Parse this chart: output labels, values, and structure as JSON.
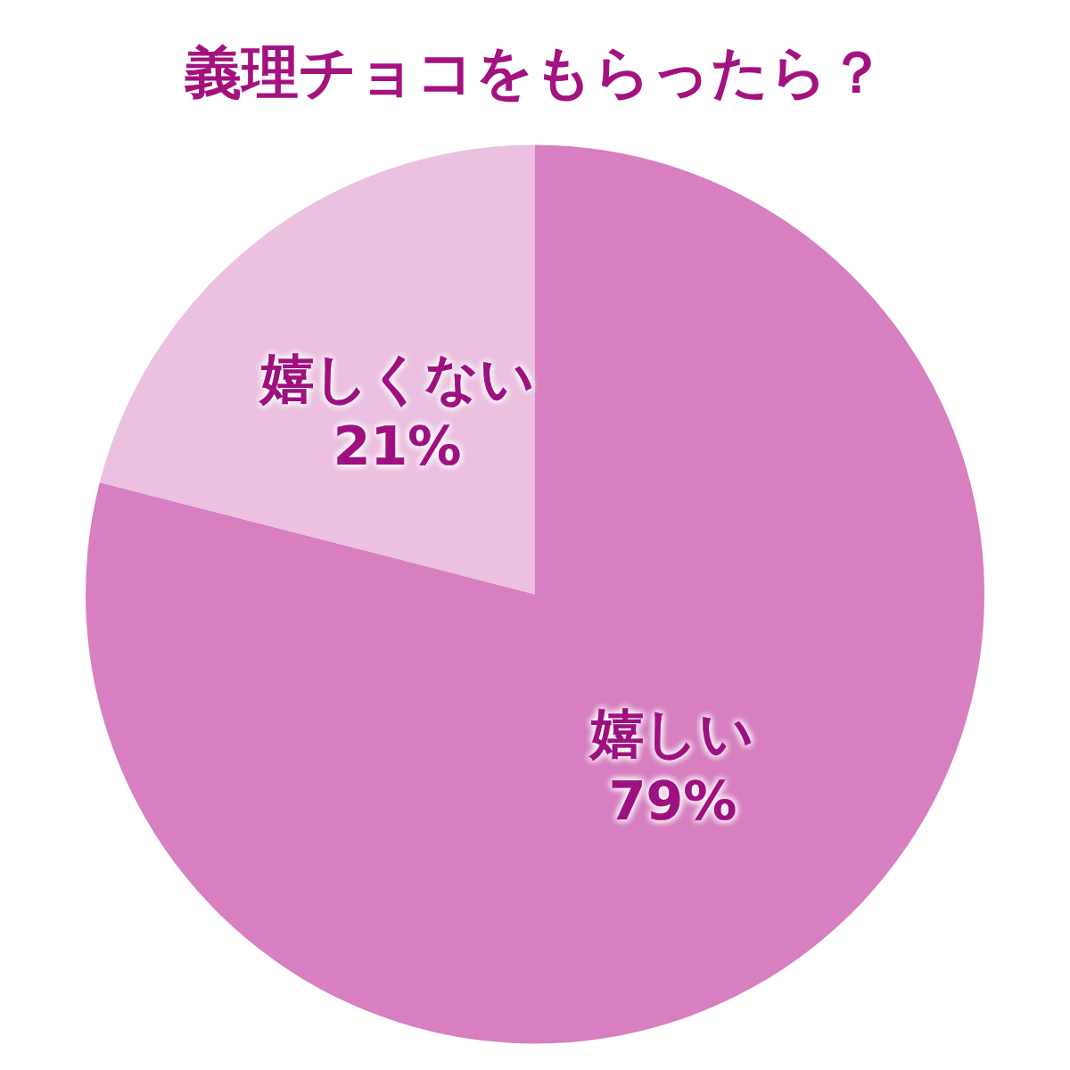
{
  "chart_data": {
    "type": "pie",
    "title": "義理チョコをもらったら？",
    "categories": [
      "嬉しい",
      "嬉しくない"
    ],
    "values": [
      79,
      21
    ],
    "colors": [
      "#d77fc0",
      "#ebc0e0"
    ],
    "value_labels": [
      "79%",
      "21%"
    ],
    "legend": false
  }
}
